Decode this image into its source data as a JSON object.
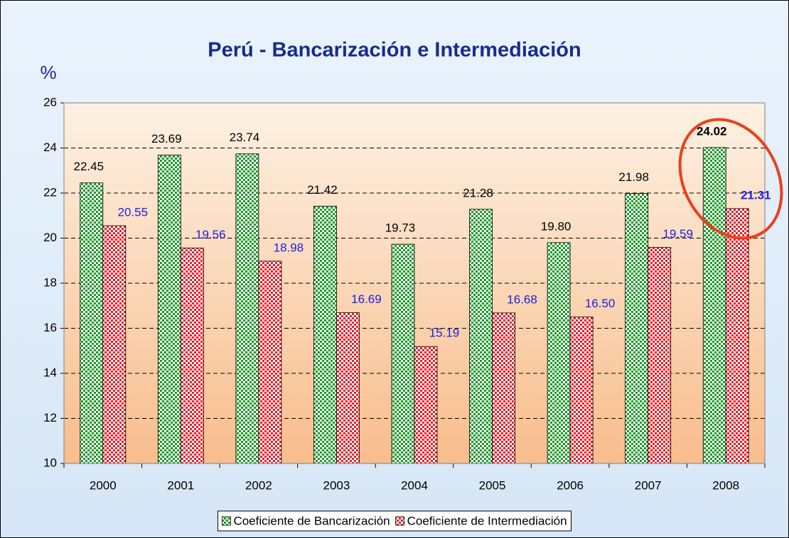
{
  "chart_data": {
    "type": "bar",
    "title": "Perú - Bancarización e Intermediación",
    "ylabel": "%",
    "categories": [
      "2000",
      "2001",
      "2002",
      "2003",
      "2004",
      "2005",
      "2006",
      "2007",
      "2008"
    ],
    "series": [
      {
        "name": "Coeficiente de Bancarización",
        "color": "#1e9a2a",
        "label_color": "#000000",
        "values": [
          22.45,
          23.69,
          23.74,
          21.42,
          19.73,
          21.28,
          19.8,
          21.98,
          24.02
        ],
        "value_labels": [
          "22.45",
          "23.69",
          "23.74",
          "21.42",
          "19.73",
          "21.28",
          "19.80",
          "21.98",
          "24.02"
        ]
      },
      {
        "name": "Coeficiente de Intermediación",
        "color": "#e8202a",
        "label_color": "#2020e0",
        "values": [
          20.55,
          19.56,
          18.98,
          16.69,
          15.19,
          16.68,
          16.5,
          19.59,
          21.31
        ],
        "value_labels": [
          "20.55",
          "19.56",
          "18.98",
          "16.69",
          "15.19",
          "16.68",
          "16.50",
          "19.59",
          "21.31"
        ]
      }
    ],
    "ylim": [
      10,
      26
    ],
    "yticks": [
      10,
      12,
      14,
      16,
      18,
      20,
      22,
      24,
      26
    ],
    "grid": true,
    "legend": "bottom"
  }
}
